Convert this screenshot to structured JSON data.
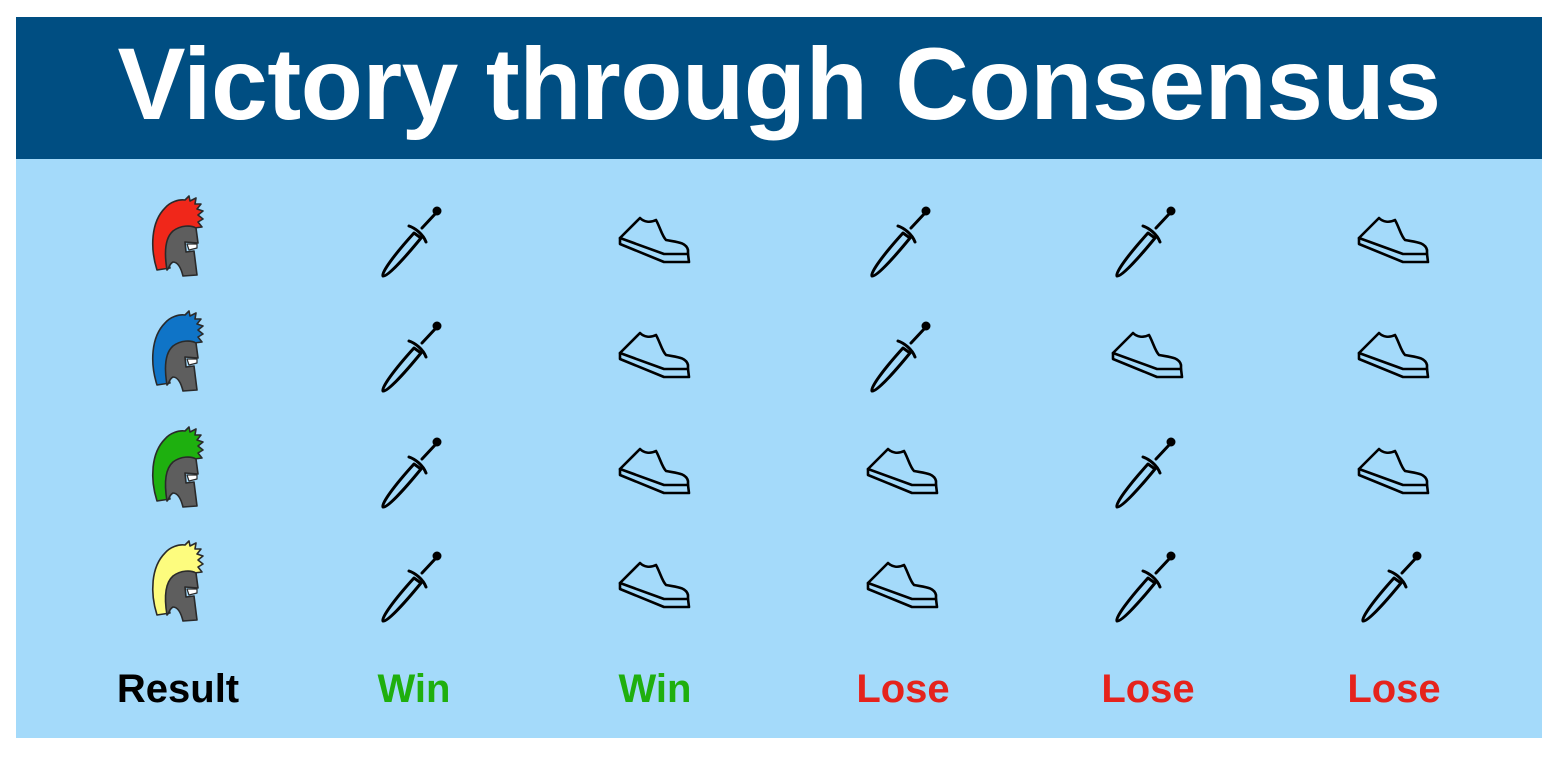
{
  "title": "Victory through Consensus",
  "colors": {
    "title_bar": "#004e82",
    "panel": "#a4dafa",
    "win": "#1faf0e",
    "lose": "#e5231c",
    "result": "#000000",
    "helmet_face": "#5e5e5e"
  },
  "generals": [
    {
      "crest_color": "#f0271a",
      "icon": "helmet-icon"
    },
    {
      "crest_color": "#0f74c7",
      "icon": "helmet-icon"
    },
    {
      "crest_color": "#1eb00f",
      "icon": "helmet-icon"
    },
    {
      "crest_color": "#fdfc7e",
      "icon": "helmet-icon"
    }
  ],
  "scenarios": [
    {
      "actions": [
        "sword",
        "sword",
        "sword",
        "sword"
      ],
      "result": "Win",
      "outcome": "win"
    },
    {
      "actions": [
        "shoe",
        "shoe",
        "shoe",
        "shoe"
      ],
      "result": "Win",
      "outcome": "win"
    },
    {
      "actions": [
        "sword",
        "sword",
        "shoe",
        "shoe"
      ],
      "result": "Lose",
      "outcome": "lose"
    },
    {
      "actions": [
        "sword",
        "shoe",
        "sword",
        "sword"
      ],
      "result": "Lose",
      "outcome": "lose"
    },
    {
      "actions": [
        "shoe",
        "shoe",
        "shoe",
        "sword"
      ],
      "result": "Lose",
      "outcome": "lose"
    }
  ],
  "result_label": "Result",
  "action_icons": {
    "sword": "sword-icon (attack)",
    "shoe": "shoe-icon (retreat)"
  }
}
